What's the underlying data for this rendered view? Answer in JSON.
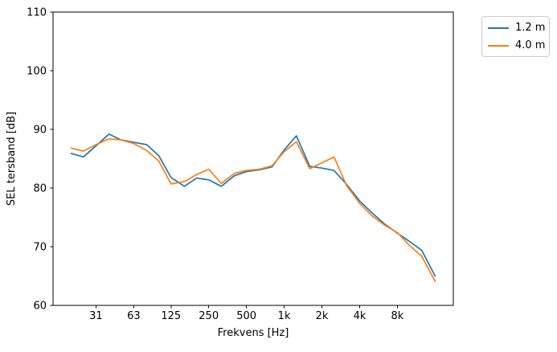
{
  "figure": {
    "background": "#ffffff",
    "title": ""
  },
  "chart_data": {
    "type": "line",
    "x_scale": "log",
    "title": "",
    "xlabel": "Frekvens [Hz]",
    "ylabel": "SEL tersband [dB]",
    "ylim": [
      60,
      110
    ],
    "yticks": [
      60,
      70,
      80,
      90,
      100,
      110
    ],
    "xticks": [
      {
        "value": 31.5,
        "label": "31"
      },
      {
        "value": 63,
        "label": "63"
      },
      {
        "value": 125,
        "label": "125"
      },
      {
        "value": 250,
        "label": "250"
      },
      {
        "value": 500,
        "label": "500"
      },
      {
        "value": 1000,
        "label": "1k"
      },
      {
        "value": 2000,
        "label": "2k"
      },
      {
        "value": 4000,
        "label": "4k"
      },
      {
        "value": 8000,
        "label": "8k"
      }
    ],
    "x_margin_frac": 0.05,
    "grid": false,
    "legend_position": "outside-upper-right",
    "x": [
      20,
      25,
      31.5,
      40,
      50,
      63,
      80,
      100,
      125,
      160,
      200,
      250,
      315,
      400,
      500,
      630,
      800,
      1000,
      1250,
      1600,
      2000,
      2500,
      3150,
      4000,
      5000,
      6300,
      8000,
      10000,
      12500,
      16000
    ],
    "series": [
      {
        "name": "1.2 m",
        "color": "#1f77b4",
        "values": [
          85.9,
          85.3,
          87.2,
          89.2,
          88.2,
          87.8,
          87.4,
          85.5,
          81.8,
          80.3,
          81.7,
          81.4,
          80.3,
          82.1,
          82.8,
          83.1,
          83.6,
          86.5,
          88.9,
          83.7,
          83.4,
          83.0,
          80.6,
          77.8,
          75.8,
          73.9,
          72.3,
          70.9,
          69.4,
          65.0
        ]
      },
      {
        "name": "4.0 m",
        "color": "#ff7f0e",
        "values": [
          86.8,
          86.3,
          87.4,
          88.4,
          88.2,
          87.6,
          86.4,
          84.6,
          80.7,
          81.1,
          82.3,
          83.2,
          80.8,
          82.5,
          83.0,
          83.2,
          83.8,
          86.2,
          87.9,
          83.3,
          84.3,
          85.3,
          80.4,
          77.4,
          75.3,
          73.7,
          72.4,
          70.2,
          68.4,
          64.1
        ]
      }
    ]
  }
}
